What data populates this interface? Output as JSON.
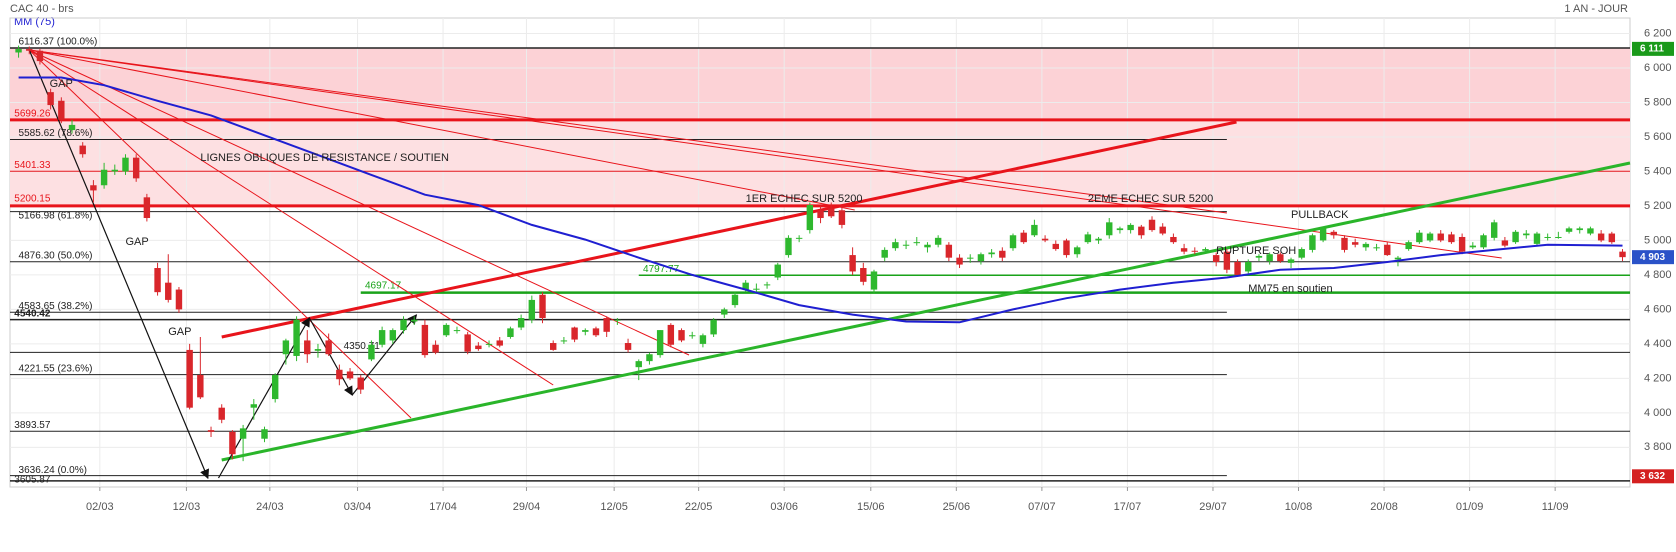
{
  "chart_data": {
    "type": "candlestick",
    "title": "CAC 40 - brs",
    "period_label": "1 AN - JOUR",
    "up_color": "#2eb82e",
    "down_color": "#d9262b",
    "ohlc": [
      [
        6090,
        6130,
        6060,
        6110
      ],
      [
        6110,
        6125,
        6080,
        6100
      ],
      [
        6100,
        6110,
        6020,
        6040
      ],
      [
        5860,
        5880,
        5760,
        5785
      ],
      [
        5810,
        5830,
        5680,
        5700
      ],
      [
        5640,
        5700,
        5620,
        5670
      ],
      [
        5550,
        5570,
        5480,
        5500
      ],
      [
        5320,
        5350,
        5220,
        5290
      ],
      [
        5320,
        5450,
        5300,
        5410
      ],
      [
        5400,
        5440,
        5380,
        5410
      ],
      [
        5400,
        5500,
        5380,
        5480
      ],
      [
        5480,
        5500,
        5340,
        5360
      ],
      [
        5250,
        5270,
        5110,
        5130
      ],
      [
        4840,
        4870,
        4680,
        4700
      ],
      [
        4755,
        4920,
        4640,
        4655
      ],
      [
        4715,
        4730,
        4580,
        4600
      ],
      [
        4365,
        4400,
        4020,
        4030
      ],
      [
        4220,
        4440,
        4080,
        4090
      ],
      [
        3900,
        3920,
        3860,
        3890
      ],
      [
        4030,
        4050,
        3940,
        3960
      ],
      [
        3890,
        3900,
        3730,
        3760
      ],
      [
        3850,
        3930,
        3720,
        3910
      ],
      [
        4030,
        4080,
        3960,
        4050
      ],
      [
        3850,
        3920,
        3830,
        3905
      ],
      [
        4080,
        4230,
        4060,
        4220
      ],
      [
        4340,
        4430,
        4280,
        4420
      ],
      [
        4330,
        4560,
        4300,
        4540
      ],
      [
        4420,
        4480,
        4290,
        4340
      ],
      [
        4360,
        4400,
        4320,
        4370
      ],
      [
        4420,
        4460,
        4330,
        4340
      ],
      [
        4250,
        4280,
        4160,
        4195
      ],
      [
        4240,
        4260,
        4190,
        4200
      ],
      [
        4205,
        4220,
        4110,
        4135
      ],
      [
        4310,
        4420,
        4300,
        4395
      ],
      [
        4395,
        4500,
        4380,
        4480
      ],
      [
        4420,
        4490,
        4400,
        4480
      ],
      [
        4480,
        4560,
        4460,
        4540
      ],
      [
        4530,
        4560,
        4510,
        4540
      ],
      [
        4510,
        4540,
        4320,
        4335
      ],
      [
        4395,
        4420,
        4340,
        4350
      ],
      [
        4450,
        4520,
        4440,
        4510
      ],
      [
        4480,
        4500,
        4460,
        4480
      ],
      [
        4455,
        4470,
        4340,
        4355
      ],
      [
        4390,
        4410,
        4360,
        4370
      ],
      [
        4400,
        4420,
        4380,
        4400
      ],
      [
        4420,
        4440,
        4380,
        4390
      ],
      [
        4440,
        4500,
        4430,
        4490
      ],
      [
        4495,
        4570,
        4480,
        4550
      ],
      [
        4540,
        4680,
        4520,
        4655
      ],
      [
        4685,
        4700,
        4520,
        4550
      ],
      [
        4405,
        4420,
        4360,
        4365
      ],
      [
        4420,
        4440,
        4400,
        4420
      ],
      [
        4495,
        4500,
        4410,
        4425
      ],
      [
        4470,
        4490,
        4450,
        4480
      ],
      [
        4490,
        4500,
        4440,
        4450
      ],
      [
        4550,
        4560,
        4440,
        4470
      ],
      [
        4535,
        4550,
        4510,
        4540
      ],
      [
        4405,
        4430,
        4350,
        4365
      ],
      [
        4265,
        4310,
        4190,
        4300
      ],
      [
        4300,
        4350,
        4280,
        4340
      ],
      [
        4335,
        4480,
        4320,
        4480
      ],
      [
        4510,
        4520,
        4380,
        4395
      ],
      [
        4480,
        4490,
        4410,
        4420
      ],
      [
        4450,
        4470,
        4430,
        4450
      ],
      [
        4400,
        4460,
        4380,
        4450
      ],
      [
        4455,
        4550,
        4440,
        4540
      ],
      [
        4570,
        4610,
        4550,
        4600
      ],
      [
        4625,
        4700,
        4610,
        4685
      ],
      [
        4715,
        4770,
        4700,
        4755
      ],
      [
        4720,
        4750,
        4690,
        4720
      ],
      [
        4740,
        4760,
        4720,
        4745
      ],
      [
        4785,
        4870,
        4770,
        4860
      ],
      [
        4915,
        5030,
        4900,
        5015
      ],
      [
        5010,
        5030,
        4990,
        5015
      ],
      [
        5060,
        5220,
        5040,
        5205
      ],
      [
        5175,
        5200,
        5100,
        5130
      ],
      [
        5185,
        5220,
        5130,
        5140
      ],
      [
        5175,
        5200,
        5070,
        5090
      ],
      [
        4915,
        4960,
        4800,
        4820
      ],
      [
        4840,
        4870,
        4740,
        4760
      ],
      [
        4715,
        4830,
        4690,
        4820
      ],
      [
        4900,
        4960,
        4880,
        4945
      ],
      [
        4955,
        5010,
        4940,
        4990
      ],
      [
        4970,
        5000,
        4950,
        4975
      ],
      [
        4985,
        5020,
        4970,
        4990
      ],
      [
        4960,
        4990,
        4930,
        4975
      ],
      [
        4975,
        5030,
        4960,
        5015
      ],
      [
        4975,
        4990,
        4880,
        4900
      ],
      [
        4900,
        4920,
        4840,
        4860
      ],
      [
        4895,
        4920,
        4870,
        4900
      ],
      [
        4880,
        4930,
        4860,
        4920
      ],
      [
        4920,
        4950,
        4900,
        4930
      ],
      [
        4940,
        4960,
        4880,
        4900
      ],
      [
        4955,
        5040,
        4940,
        5030
      ],
      [
        5045,
        5060,
        4980,
        4990
      ],
      [
        5030,
        5120,
        5020,
        5090
      ],
      [
        5010,
        5030,
        4990,
        5000
      ],
      [
        4980,
        5000,
        4940,
        4950
      ],
      [
        5000,
        5010,
        4900,
        4915
      ],
      [
        4920,
        4970,
        4900,
        4960
      ],
      [
        4990,
        5050,
        4980,
        5035
      ],
      [
        5000,
        5020,
        4980,
        5010
      ],
      [
        5030,
        5130,
        5010,
        5105
      ],
      [
        5060,
        5080,
        5040,
        5070
      ],
      [
        5060,
        5100,
        5040,
        5090
      ],
      [
        5080,
        5090,
        5010,
        5030
      ],
      [
        5120,
        5140,
        5050,
        5060
      ],
      [
        5080,
        5100,
        5030,
        5040
      ],
      [
        5020,
        5040,
        4980,
        4990
      ],
      [
        4955,
        4980,
        4920,
        4935
      ],
      [
        4940,
        4960,
        4920,
        4935
      ],
      [
        4940,
        4960,
        4930,
        4950
      ],
      [
        4915,
        4930,
        4850,
        4875
      ],
      [
        4935,
        4950,
        4810,
        4830
      ],
      [
        4875,
        4890,
        4790,
        4800
      ],
      [
        4820,
        4890,
        4800,
        4875
      ],
      [
        4900,
        4920,
        4880,
        4910
      ],
      [
        4880,
        4930,
        4860,
        4920
      ],
      [
        4920,
        4930,
        4870,
        4880
      ],
      [
        4870,
        4900,
        4840,
        4890
      ],
      [
        4900,
        4960,
        4890,
        4950
      ],
      [
        4945,
        5040,
        4930,
        5030
      ],
      [
        5000,
        5080,
        4990,
        5070
      ],
      [
        5050,
        5060,
        5010,
        5030
      ],
      [
        5015,
        5030,
        4930,
        4945
      ],
      [
        4990,
        5010,
        4960,
        4975
      ],
      [
        4960,
        4990,
        4940,
        4980
      ],
      [
        4960,
        4980,
        4940,
        4960
      ],
      [
        4975,
        4990,
        4910,
        4915
      ],
      [
        4890,
        4910,
        4850,
        4900
      ],
      [
        4950,
        5000,
        4940,
        4990
      ],
      [
        4990,
        5060,
        4980,
        5045
      ],
      [
        5000,
        5050,
        4990,
        5040
      ],
      [
        5040,
        5060,
        4990,
        5000
      ],
      [
        5035,
        5050,
        4980,
        4990
      ],
      [
        5020,
        5040,
        4920,
        4935
      ],
      [
        4960,
        4990,
        4950,
        4970
      ],
      [
        4960,
        5040,
        4950,
        5030
      ],
      [
        5015,
        5120,
        5000,
        5105
      ],
      [
        5000,
        5020,
        4960,
        4970
      ],
      [
        4990,
        5060,
        4980,
        5050
      ],
      [
        5030,
        5060,
        5010,
        5040
      ],
      [
        4980,
        5050,
        4970,
        5040
      ],
      [
        5020,
        5040,
        5000,
        5020
      ],
      [
        5020,
        5050,
        5010,
        5020
      ],
      [
        5050,
        5080,
        5040,
        5070
      ],
      [
        5060,
        5080,
        5040,
        5070
      ],
      [
        5040,
        5080,
        5030,
        5070
      ],
      [
        5040,
        5060,
        4990,
        5000
      ],
      [
        5040,
        5050,
        4980,
        4990
      ],
      [
        4935,
        4950,
        4880,
        4903
      ]
    ],
    "moving_average": {
      "name": "MM (75)",
      "color": "#1f1fd1",
      "x": [
        0,
        4,
        8,
        13,
        18,
        23,
        28,
        33,
        38,
        43,
        48,
        53,
        58,
        63,
        68,
        73,
        78,
        83,
        88,
        93,
        98,
        103,
        108,
        113,
        118,
        123,
        128,
        133,
        138,
        143,
        150
      ],
      "values": [
        5945,
        5945,
        5900,
        5810,
        5725,
        5610,
        5495,
        5380,
        5265,
        5205,
        5090,
        5005,
        4900,
        4800,
        4715,
        4625,
        4570,
        4530,
        4525,
        4600,
        4665,
        4715,
        4755,
        4785,
        4830,
        4840,
        4875,
        4915,
        4945,
        4975,
        4970
      ]
    },
    "xlim": [
      -0.8,
      150.7
    ],
    "xticks": [
      {
        "value": 7.6,
        "label": "02/03"
      },
      {
        "value": 15.7,
        "label": "12/03"
      },
      {
        "value": 23.5,
        "label": "24/03"
      },
      {
        "value": 31.7,
        "label": "03/04"
      },
      {
        "value": 39.7,
        "label": "17/04"
      },
      {
        "value": 47.5,
        "label": "29/04"
      },
      {
        "value": 55.7,
        "label": "12/05"
      },
      {
        "value": 63.6,
        "label": "22/05"
      },
      {
        "value": 71.6,
        "label": "03/06"
      },
      {
        "value": 79.7,
        "label": "15/06"
      },
      {
        "value": 87.7,
        "label": "25/06"
      },
      {
        "value": 95.7,
        "label": "07/07"
      },
      {
        "value": 103.7,
        "label": "17/07"
      },
      {
        "value": 111.7,
        "label": "29/07"
      },
      {
        "value": 119.7,
        "label": "10/08"
      },
      {
        "value": 127.7,
        "label": "20/08"
      },
      {
        "value": 135.7,
        "label": "01/09"
      },
      {
        "value": 143.7,
        "label": "11/09"
      }
    ],
    "ylim": [
      3570,
      6290
    ],
    "yticks": [
      {
        "value": 3800,
        "label": "3 800"
      },
      {
        "value": 4000,
        "label": "4 000"
      },
      {
        "value": 4200,
        "label": "4 200"
      },
      {
        "value": 4400,
        "label": "4 400"
      },
      {
        "value": 4600,
        "label": "4 600"
      },
      {
        "value": 4800,
        "label": "4 800"
      },
      {
        "value": 5000,
        "label": "5 000"
      },
      {
        "value": 5200,
        "label": "5 200"
      },
      {
        "value": 5400,
        "label": "5 400"
      },
      {
        "value": 5600,
        "label": "5 600"
      },
      {
        "value": 5800,
        "label": "5 800"
      },
      {
        "value": 6000,
        "label": "6 000"
      },
      {
        "value": 6200,
        "label": "6 200"
      }
    ],
    "grid": true,
    "levels": [
      {
        "value": 6116.37,
        "label": "6116.37  (100.0%)",
        "color": "#222222"
      },
      {
        "value": 5699.26,
        "label": "5699.26",
        "color": "#e8141b"
      },
      {
        "value": 5585.62,
        "label": "5585.62  (78.6%)",
        "color": "#222222"
      },
      {
        "value": 5401.33,
        "label": "5401.33",
        "color": "#e8141b"
      },
      {
        "value": 5200.15,
        "label": "5200.15",
        "color": "#e8141b"
      },
      {
        "value": 5166.98,
        "label": "5166.98  (61.8%)",
        "color": "#222222"
      },
      {
        "value": 4876.3,
        "label": "4876.30  (50.0%)",
        "color": "#222222"
      },
      {
        "value": 4797.77,
        "label": "4797.77",
        "color": "#1aa31a"
      },
      {
        "value": 4697.17,
        "label": "4697.17",
        "color": "#1aa31a"
      },
      {
        "value": 4583.65,
        "label": "4583.65  (38.2%)",
        "color": "#222222"
      },
      {
        "value": 4540.42,
        "label": "4540.42",
        "color": "#222222"
      },
      {
        "value": 4350.71,
        "label": "4350.71",
        "color": "#222222"
      },
      {
        "value": 4221.55,
        "label": "4221.55  (23.6%)",
        "color": "#222222"
      },
      {
        "value": 3893.57,
        "label": "3893.57",
        "color": "#222222"
      },
      {
        "value": 3636.24,
        "label": "3636.24  (0.0%)",
        "color": "#222222"
      },
      {
        "value": 3605.87,
        "label": "3605.87",
        "color": "#222222"
      }
    ],
    "price_badges": [
      {
        "value": 6111,
        "label": "6 111",
        "color": "#1a9a1a"
      },
      {
        "value": 4903,
        "label": "4 903",
        "color": "#2a52c8"
      },
      {
        "value": 3632,
        "label": "3 632",
        "color": "#d42020"
      }
    ],
    "annotations": [
      "GAP",
      "GAP",
      "GAP",
      "LIGNES OBLIQUES DE RESISTANCE / SOUTIEN",
      "1ER ECHEC SUR 5200",
      "2EME ECHEC SUR 5200",
      "PULLBACK",
      "RUPTURE SOH",
      "MM75 en soutien"
    ]
  }
}
